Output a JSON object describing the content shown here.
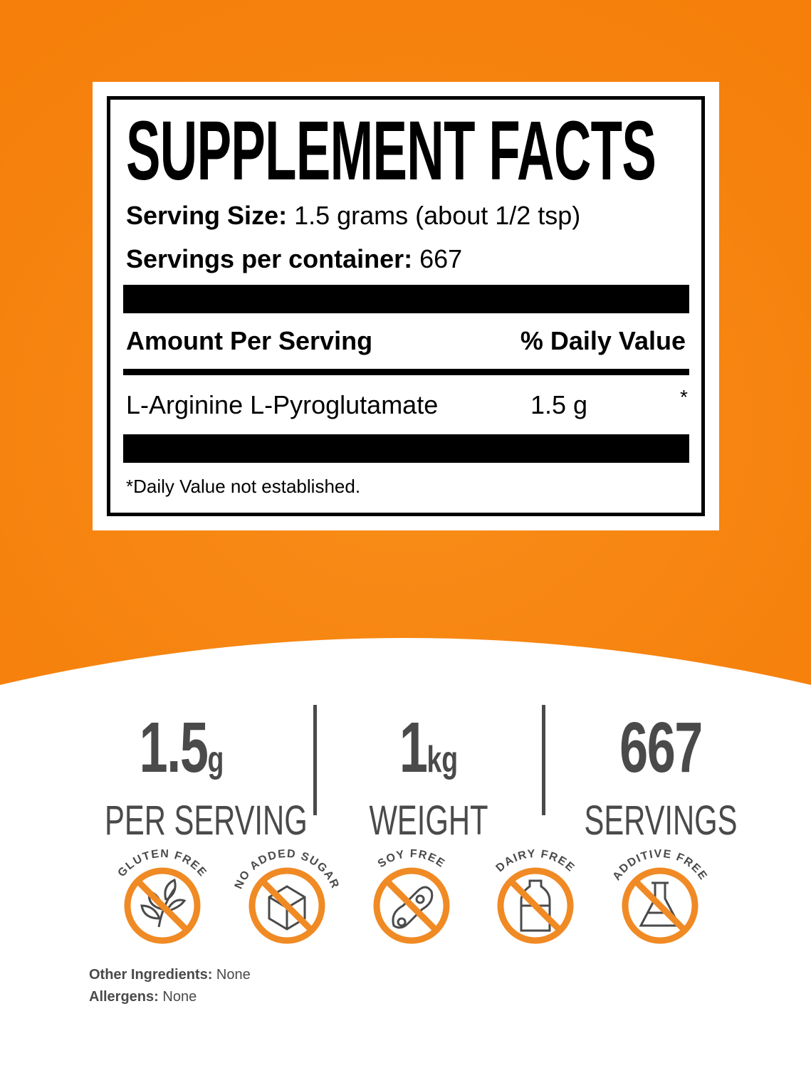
{
  "colors": {
    "orange": "#f7860f",
    "badge_orange": "#f08a24",
    "dark_gray": "#4a4a4a"
  },
  "label": {
    "title": "SUPPLEMENT FACTS",
    "serving_size_label": "Serving Size:",
    "serving_size_value": "1.5 grams (about 1/2 tsp)",
    "servings_label": "Servings per container:",
    "servings_value": "667",
    "amount_header": "Amount Per Serving",
    "dv_header": "% Daily Value",
    "ingredient": {
      "name": "L-Arginine L-Pyroglutamate",
      "amount": "1.5 g",
      "dv": "*"
    },
    "footnote": "*Daily Value not established."
  },
  "stats": [
    {
      "number": "1.5",
      "unit": "g",
      "label": "PER SERVING"
    },
    {
      "number": "1",
      "unit": "kg",
      "label": "WEIGHT"
    },
    {
      "number": "667",
      "unit": "",
      "label": "SERVINGS"
    }
  ],
  "badges": [
    {
      "text": "GLUTEN FREE",
      "icon": "wheat-icon"
    },
    {
      "text": "NO ADDED SUGAR",
      "icon": "sugar-cube-icon"
    },
    {
      "text": "SOY FREE",
      "icon": "soybean-icon"
    },
    {
      "text": "DAIRY FREE",
      "icon": "milk-bottle-icon"
    },
    {
      "text": "ADDITIVE FREE",
      "icon": "flask-icon"
    }
  ],
  "other": {
    "ingredients_label": "Other Ingredients:",
    "ingredients_value": "None",
    "allergens_label": "Allergens:",
    "allergens_value": "None"
  }
}
